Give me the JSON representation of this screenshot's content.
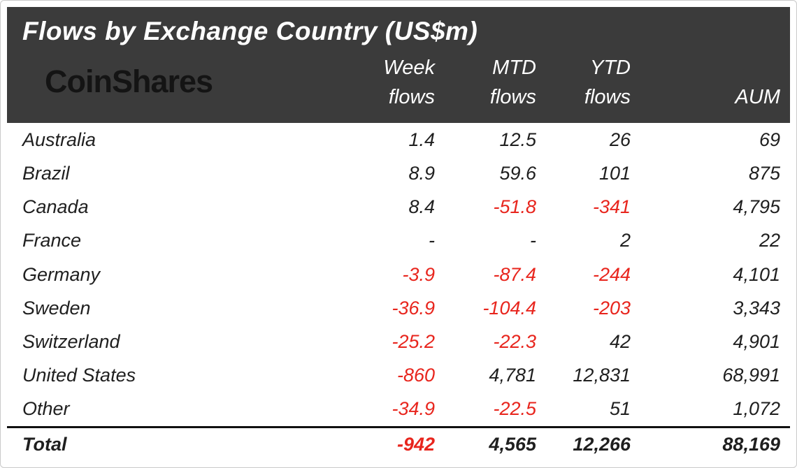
{
  "title": "Flows by Exchange Country (US$m)",
  "logo": "CoinShares",
  "colors": {
    "header_bg": "#3b3b3b",
    "negative": "#e8251d",
    "text": "#1f1f1f",
    "header_text": "#ffffff"
  },
  "chart_data": {
    "type": "table",
    "title": "Flows by Exchange Country (US$m)",
    "column_headers": [
      {
        "top": "Week",
        "bottom": "flows"
      },
      {
        "top": "MTD",
        "bottom": "flows"
      },
      {
        "top": "YTD",
        "bottom": "flows"
      },
      {
        "top": "",
        "bottom": "AUM"
      }
    ],
    "columns": [
      "Country",
      "Week flows",
      "MTD flows",
      "YTD flows",
      "AUM"
    ],
    "rows": [
      {
        "country": "Australia",
        "values": [
          "1.4",
          "12.5",
          "26",
          "69"
        ]
      },
      {
        "country": "Brazil",
        "values": [
          "8.9",
          "59.6",
          "101",
          "875"
        ]
      },
      {
        "country": "Canada",
        "values": [
          "8.4",
          "-51.8",
          "-341",
          "4,795"
        ]
      },
      {
        "country": "France",
        "values": [
          "-",
          "-",
          "2",
          "22"
        ]
      },
      {
        "country": "Germany",
        "values": [
          "-3.9",
          "-87.4",
          "-244",
          "4,101"
        ]
      },
      {
        "country": "Sweden",
        "values": [
          "-36.9",
          "-104.4",
          "-203",
          "3,343"
        ]
      },
      {
        "country": "Switzerland",
        "values": [
          "-25.2",
          "-22.3",
          "42",
          "4,901"
        ]
      },
      {
        "country": "United States",
        "values": [
          "-860",
          "4,781",
          "12,831",
          "68,991"
        ]
      },
      {
        "country": "Other",
        "values": [
          "-34.9",
          "-22.5",
          "51",
          "1,072"
        ]
      }
    ],
    "total": {
      "country": "Total",
      "values": [
        "-942",
        "4,565",
        "12,266",
        "88,169"
      ]
    }
  }
}
